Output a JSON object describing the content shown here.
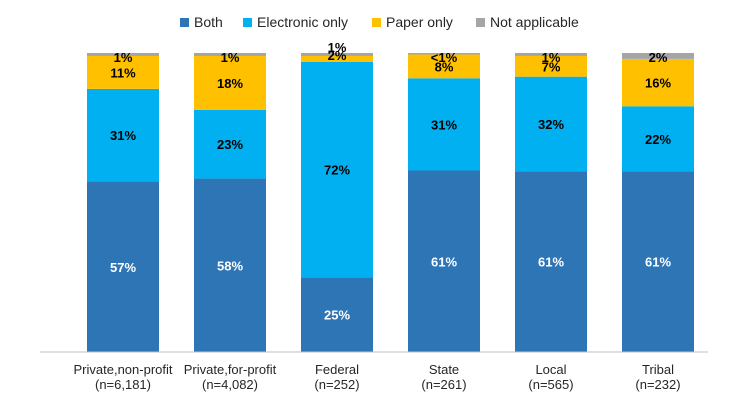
{
  "chart_data": {
    "type": "bar",
    "stacked": true,
    "title": "",
    "xlabel": "",
    "ylabel": "",
    "ylim": [
      0,
      100
    ],
    "grid": false,
    "legend_position": "top",
    "categories": [
      [
        "Private,non-profit",
        "(n=6,181)"
      ],
      [
        "Private,for-profit",
        "(n=4,082)"
      ],
      [
        "Federal",
        "(n=252)"
      ],
      [
        "State",
        "(n=261)"
      ],
      [
        "Local",
        "(n=565)"
      ],
      [
        "Tribal",
        "(n=232)"
      ]
    ],
    "series": [
      {
        "name": "Both",
        "color": "#2E75B6",
        "values": [
          57,
          58,
          25,
          61,
          61,
          61
        ],
        "labels": [
          "57%",
          "58%",
          "25%",
          "61%",
          "61%",
          "61%"
        ]
      },
      {
        "name": "Electronic only",
        "color": "#00B0F0",
        "values": [
          31,
          23,
          72,
          31,
          32,
          22
        ],
        "labels": [
          "31%",
          "23%",
          "72%",
          "31%",
          "32%",
          "22%"
        ]
      },
      {
        "name": "Paper only",
        "color": "#FFC000",
        "values": [
          11,
          18,
          2,
          8,
          7,
          16
        ],
        "labels": [
          "11%",
          "18%",
          "2%",
          "8%",
          "7%",
          "16%"
        ]
      },
      {
        "name": "Not applicable",
        "color": "#A5A5A5",
        "values": [
          1,
          1,
          1,
          0.5,
          1,
          2
        ],
        "labels": [
          "1%",
          "1%",
          "1%",
          "<1%",
          "1%",
          "2%"
        ]
      }
    ]
  }
}
